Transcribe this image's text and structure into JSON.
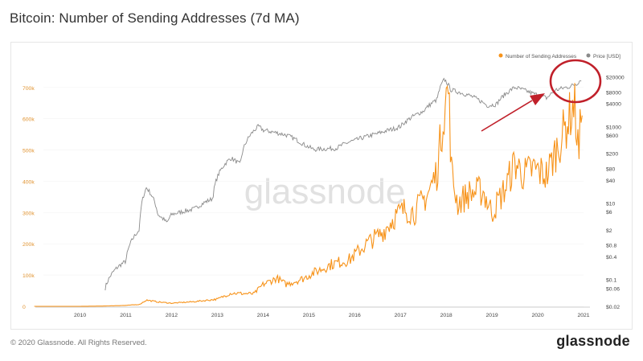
{
  "title": "Bitcoin: Number of Sending Addresses (7d MA)",
  "watermark": "glassnode",
  "footer": {
    "copyright": "© 2020 Glassnode. All Rights Reserved.",
    "logo": "glassnode"
  },
  "colors": {
    "addresses": "#f7931a",
    "price": "#8a8a8a",
    "annotation": "#c0202a",
    "left_axis_text": "#e0922e"
  },
  "chart_data": {
    "type": "line",
    "title": "Bitcoin: Number of Sending Addresses (7d MA)",
    "legend_position": "top-right",
    "x_ticks": [
      "2010",
      "2011",
      "2012",
      "2013",
      "2014",
      "2015",
      "2016",
      "2017",
      "2018",
      "2019",
      "2020",
      "2021"
    ],
    "y_left": {
      "ticks": [
        "0",
        "100k",
        "200k",
        "300k",
        "400k",
        "500k",
        "600k",
        "700k"
      ],
      "range": [
        0,
        720000
      ]
    },
    "y_right": {
      "scale": "log",
      "ticks": [
        "$20000",
        "$8000",
        "$4000",
        "$1000",
        "$600",
        "$200",
        "$80",
        "$40",
        "$10",
        "$6",
        "$2",
        "$0.8",
        "$0.4",
        "$0.1",
        "$0.06",
        "$0.02"
      ],
      "range": [
        0.02,
        40000
      ]
    },
    "series": [
      {
        "name": "Number of Sending Addresses",
        "axis": "left",
        "points": [
          [
            2009.0,
            0
          ],
          [
            2010.0,
            100
          ],
          [
            2010.5,
            800
          ],
          [
            2011.0,
            3000
          ],
          [
            2011.3,
            6000
          ],
          [
            2011.45,
            20000
          ],
          [
            2011.7,
            14000
          ],
          [
            2012.0,
            10000
          ],
          [
            2012.5,
            15000
          ],
          [
            2013.0,
            23000
          ],
          [
            2013.3,
            42000
          ],
          [
            2013.8,
            40000
          ],
          [
            2014.0,
            70000
          ],
          [
            2014.3,
            90000
          ],
          [
            2014.5,
            70000
          ],
          [
            2014.9,
            90000
          ],
          [
            2015.0,
            100000
          ],
          [
            2015.5,
            135000
          ],
          [
            2015.9,
            150000
          ],
          [
            2016.0,
            165000
          ],
          [
            2016.3,
            205000
          ],
          [
            2016.6,
            235000
          ],
          [
            2016.9,
            290000
          ],
          [
            2017.1,
            310000
          ],
          [
            2017.3,
            300000
          ],
          [
            2017.6,
            360000
          ],
          [
            2017.8,
            430000
          ],
          [
            2017.95,
            630000
          ],
          [
            2018.05,
            700000
          ],
          [
            2018.12,
            420000
          ],
          [
            2018.25,
            330000
          ],
          [
            2018.5,
            360000
          ],
          [
            2018.8,
            370000
          ],
          [
            2019.0,
            300000
          ],
          [
            2019.3,
            380000
          ],
          [
            2019.5,
            460000
          ],
          [
            2019.7,
            420000
          ],
          [
            2019.9,
            440000
          ],
          [
            2020.2,
            420000
          ],
          [
            2020.4,
            500000
          ],
          [
            2020.6,
            570000
          ],
          [
            2020.8,
            650000
          ],
          [
            2020.9,
            480000
          ],
          [
            2020.97,
            700000
          ]
        ]
      },
      {
        "name": "Price [USD]",
        "axis": "right",
        "points": [
          [
            2010.55,
            0.06
          ],
          [
            2010.8,
            0.2
          ],
          [
            2011.0,
            0.3
          ],
          [
            2011.3,
            2
          ],
          [
            2011.45,
            25
          ],
          [
            2011.7,
            5
          ],
          [
            2011.9,
            3
          ],
          [
            2012.0,
            5
          ],
          [
            2012.5,
            7
          ],
          [
            2012.9,
            13
          ],
          [
            2013.3,
            150
          ],
          [
            2013.5,
            100
          ],
          [
            2013.9,
            1000
          ],
          [
            2014.0,
            800
          ],
          [
            2014.5,
            600
          ],
          [
            2014.9,
            330
          ],
          [
            2015.1,
            250
          ],
          [
            2015.6,
            270
          ],
          [
            2015.9,
            400
          ],
          [
            2016.0,
            430
          ],
          [
            2016.5,
            650
          ],
          [
            2016.9,
            900
          ],
          [
            2017.0,
            1000
          ],
          [
            2017.5,
            2500
          ],
          [
            2017.8,
            5000
          ],
          [
            2017.96,
            17000
          ],
          [
            2018.1,
            9000
          ],
          [
            2018.5,
            6500
          ],
          [
            2018.9,
            3500
          ],
          [
            2019.1,
            3800
          ],
          [
            2019.5,
            10500
          ],
          [
            2019.9,
            7200
          ],
          [
            2020.2,
            5500
          ],
          [
            2020.4,
            9000
          ],
          [
            2020.7,
            11000
          ],
          [
            2020.85,
            13000
          ],
          [
            2020.95,
            17000
          ]
        ]
      }
    ],
    "annotations": [
      {
        "type": "arrow",
        "label": ""
      },
      {
        "type": "circle",
        "label": ""
      }
    ]
  }
}
